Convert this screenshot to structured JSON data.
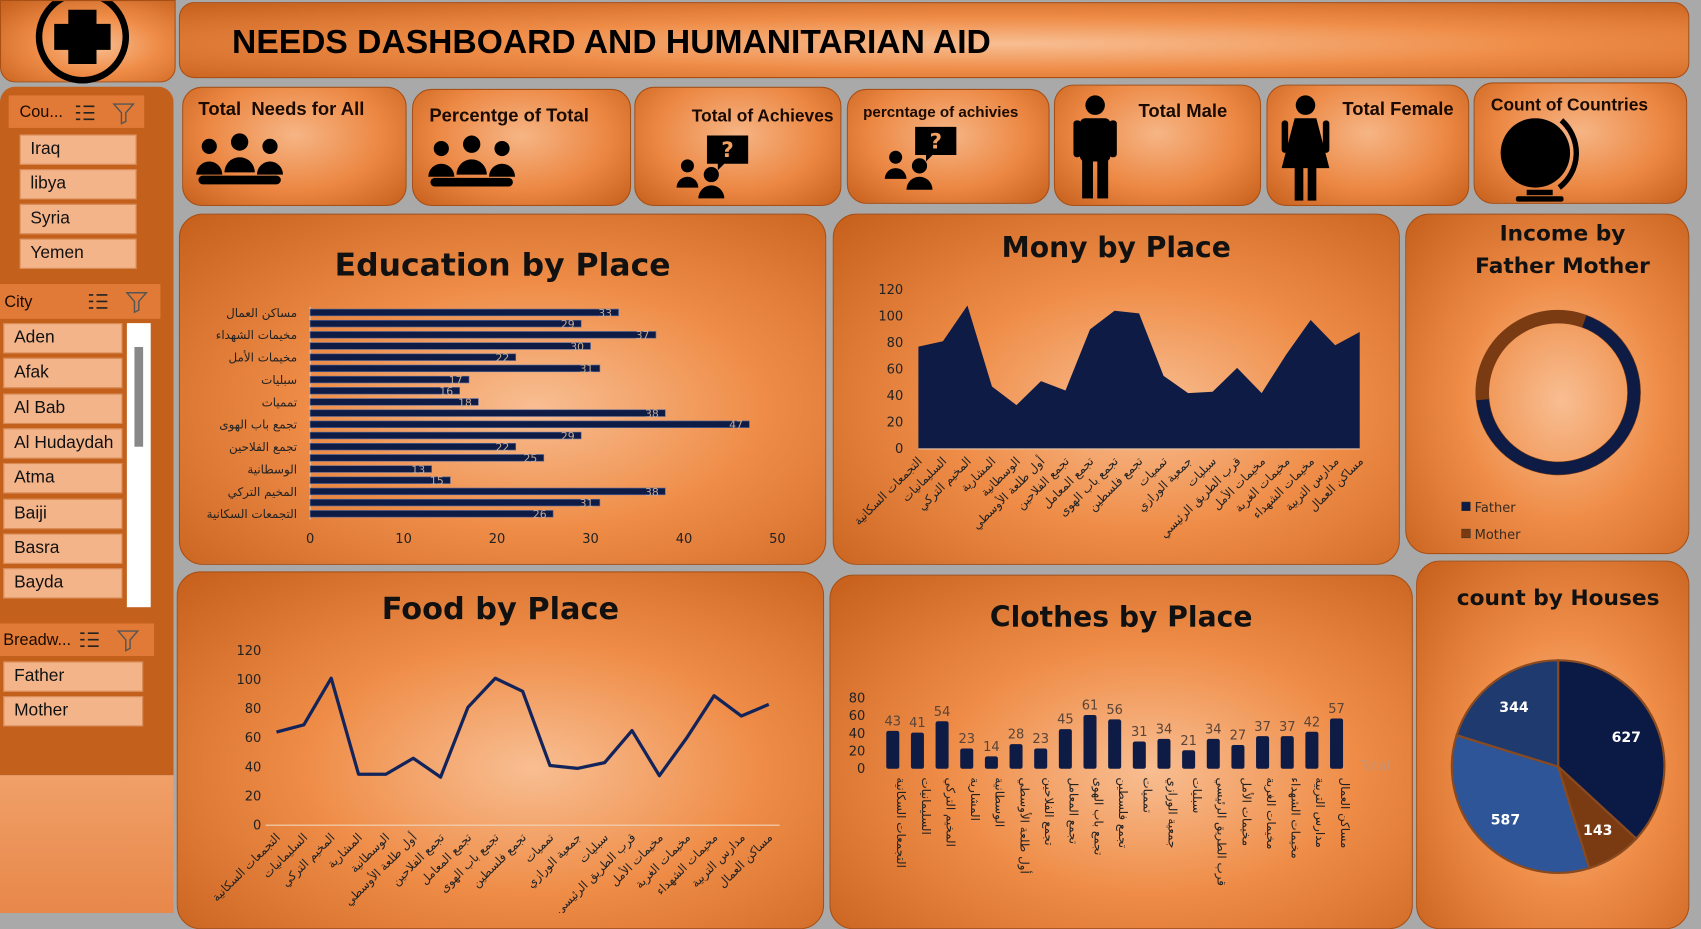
{
  "header": {
    "title": "NEEDS DASHBOARD AND HUMANITARIAN AID"
  },
  "kpi_cards": [
    "Total  Needs for All",
    "Percentge of Total",
    "Total of Achieves",
    "percntage of achivies",
    "Total Male",
    "Total Female",
    "Count of Countries"
  ],
  "slicers": [
    {
      "title": "Cou...",
      "items": [
        "Iraq",
        "libya",
        "Syria",
        "Yemen"
      ]
    },
    {
      "title": "City",
      "items": [
        "Aden",
        "Afak",
        "Al Bab",
        "Al Hudaydah",
        "Atma",
        "Baiji",
        "Basra",
        "Bayda"
      ]
    },
    {
      "title": "Breadw...",
      "items": [
        "Father",
        "Mother"
      ]
    }
  ],
  "chart_data": [
    {
      "type": "hbar",
      "title": "Education by Place",
      "categories": [
        "التجمعات السكانية",
        null,
        "المخيم التركي",
        null,
        "الوسطانية",
        null,
        "تجمع الفلاحين",
        null,
        "تجمع باب الهوى",
        null,
        "تمميات",
        null,
        "سبليات",
        null,
        "مخيمات الأمل",
        null,
        "مخيمات الشهداء",
        null,
        "مساكن العمال"
      ],
      "values": [
        26,
        31,
        38,
        15,
        13,
        25,
        22,
        29,
        47,
        38,
        18,
        16,
        17,
        31,
        22,
        30,
        37,
        29,
        33
      ],
      "color": "#0d1b45",
      "xlim": [
        0,
        50
      ],
      "xticks": [
        0,
        10,
        20,
        30,
        40,
        50
      ]
    },
    {
      "type": "area",
      "title": "Mony by Place",
      "categories": [
        "التجمعات السكانية",
        "السليمانيات",
        "المخيم التركي",
        "المشارية",
        "الوسطانية",
        "أول طلعة الأوسطي",
        "تجمع الفلاحين",
        "تجمع المعامل",
        "تجمع باب الهوى",
        "تجمع فلسطين",
        "تمميات",
        "جمعية الورازي",
        "سبليات",
        "قرب الطريق الرئيسي",
        "مخيمات الأمل",
        "مخيمات الغربة",
        "مخيمات الشهداء",
        "مدارس التربية",
        "مساكن العمال"
      ],
      "values": [
        77,
        81,
        108,
        47,
        33,
        51,
        44,
        90,
        104,
        102,
        55,
        42,
        43,
        61,
        42,
        71,
        97,
        78,
        88
      ],
      "color": "#0d1b45",
      "ylim": [
        0,
        120
      ],
      "yticks": [
        0,
        20,
        40,
        60,
        80,
        100,
        120
      ]
    },
    {
      "type": "donut",
      "title": "Income by Father Mother",
      "categories": [
        "Father",
        "Mother"
      ],
      "values": [
        68,
        32
      ],
      "colors": [
        "#0d1b45",
        "#7a3a12"
      ]
    },
    {
      "type": "line",
      "title": "Food by Place",
      "categories": [
        "التجمعات السكانية",
        "السليمانيات",
        "المخيم التركي",
        "المشارية",
        "الوسطانية",
        "أول طلعة الأوسطي",
        "تجمع الفلاحين",
        "تجمع المعامل",
        "تجمع باب الهوى",
        "تجمع فلسطين",
        "تمميات",
        "جمعية الورازي",
        "سبليات",
        "قرب الطريق الرئيسي",
        "مخيمات الأمل",
        "مخيمات الغربة",
        "مخيمات الشهداء",
        "مدارس التربية",
        "مساكن العمال"
      ],
      "values": [
        64,
        69,
        101,
        35,
        35,
        46,
        33,
        81,
        101,
        92,
        41,
        39,
        43,
        65,
        34,
        60,
        89,
        75,
        83
      ],
      "color": "#13245a",
      "ylim": [
        0,
        120
      ],
      "yticks": [
        0,
        20,
        40,
        60,
        80,
        100,
        120
      ]
    },
    {
      "type": "column",
      "title": "Clothes by Place",
      "categories": [
        "التجمعات السكانية",
        "السليمانيات",
        "المخيم التركي",
        "المشارية",
        "الوسطانية",
        "أول طلعة الأوسطي",
        "تجمع الفلاحين",
        "تجمع المعامل",
        "تجمع باب الهوى",
        "تجمع فلسطين",
        "تمميات",
        "جمعية الورازي",
        "سبليات",
        "قرب الطريق الرئيسي",
        "مخيمات الأمل",
        "مخيمات الغربة",
        "مخيمات الشهداء",
        "مدارس التربية",
        "مساكن العمال"
      ],
      "series": [
        {
          "name": "Total",
          "color": "#0d1b45",
          "values": [
            43,
            41,
            54,
            23,
            14,
            28,
            23,
            45,
            61,
            56,
            31,
            34,
            21,
            34,
            27,
            37,
            37,
            42,
            57
          ]
        }
      ],
      "ylim": [
        0,
        80
      ],
      "yticks": [
        0,
        20,
        40,
        60,
        80
      ]
    },
    {
      "type": "pie",
      "title": "count by Houses",
      "values": [
        627,
        143,
        587,
        344
      ],
      "colors": [
        "#0b1a45",
        "#7a3a12",
        "#2e5597",
        "#1f3a6e"
      ]
    }
  ]
}
